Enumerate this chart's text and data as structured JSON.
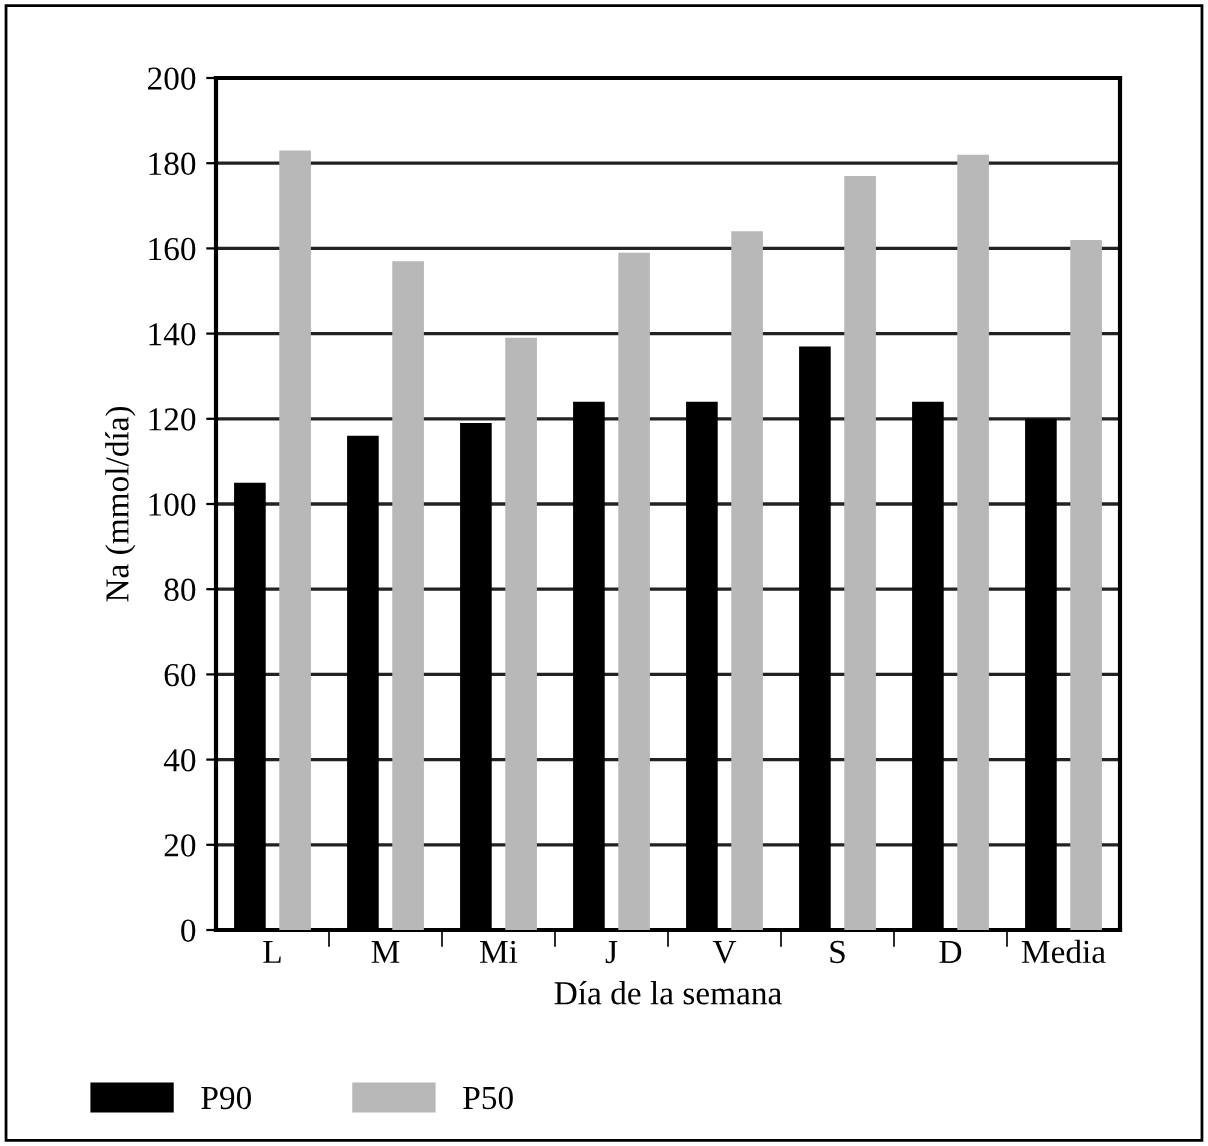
{
  "chart_data": {
    "type": "bar",
    "xlabel": "Día de la semana",
    "ylabel": "Na (mmol/día)",
    "categories": [
      "L",
      "M",
      "Mi",
      "J",
      "V",
      "S",
      "D",
      "Media"
    ],
    "series": [
      {
        "name": "P90",
        "color": "#000000",
        "values": [
          105,
          116,
          119,
          124,
          124,
          137,
          124,
          120
        ]
      },
      {
        "name": "P50",
        "color": "#b8b8b8",
        "values": [
          183,
          157,
          139,
          159,
          164,
          177,
          182,
          162
        ]
      }
    ],
    "ylim": [
      0,
      200
    ],
    "yticks": [
      0,
      20,
      40,
      60,
      80,
      100,
      120,
      140,
      160,
      180,
      200
    ],
    "grid": "y",
    "legend": "bottom left"
  }
}
